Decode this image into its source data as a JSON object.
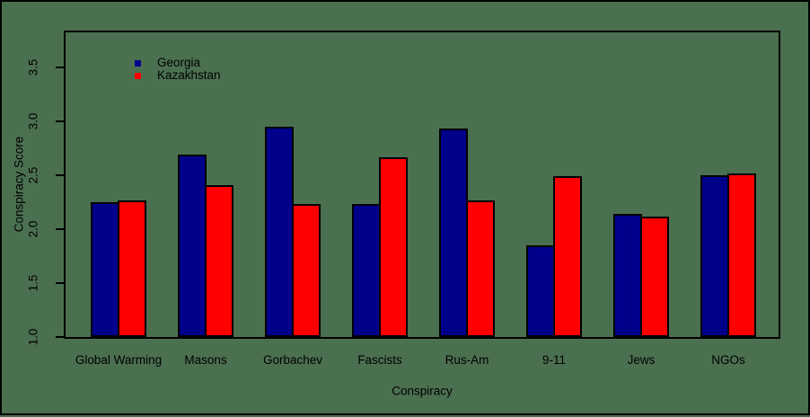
{
  "chart_data": {
    "type": "bar",
    "title": "",
    "xlabel": "Conspiracy",
    "ylabel": "Conspiracy Score",
    "categories": [
      "Global Warming",
      "Masons",
      "Gorbachev",
      "Fascists",
      "Rus-Am",
      "9-11",
      "Jews",
      "NGOs"
    ],
    "series": [
      {
        "name": "Georgia",
        "color": "#00008B",
        "values": [
          2.25,
          2.69,
          2.95,
          2.23,
          2.93,
          1.85,
          2.14,
          2.5
        ]
      },
      {
        "name": "Kazakhstan",
        "color": "#FF0000",
        "values": [
          2.27,
          2.41,
          2.23,
          2.67,
          2.27,
          2.49,
          2.12,
          2.52
        ]
      }
    ],
    "ylim": [
      1.0,
      3.83
    ],
    "yticks": [
      1.0,
      1.5,
      2.0,
      2.5,
      3.0,
      3.5
    ],
    "ytick_labels": [
      "1.0",
      "1.5",
      "2.0",
      "2.5",
      "3.0",
      "3.5"
    ],
    "legend": {
      "position": "top-left-inside",
      "entries": [
        "Georgia",
        "Kazakhstan"
      ]
    },
    "grid": false,
    "colors": {
      "background": "#4B7050",
      "bar_georgia": "#00008B",
      "bar_kazakhstan": "#FF0000",
      "bar_outline": "#000000",
      "axis": "#000000",
      "text": "#000000"
    }
  }
}
